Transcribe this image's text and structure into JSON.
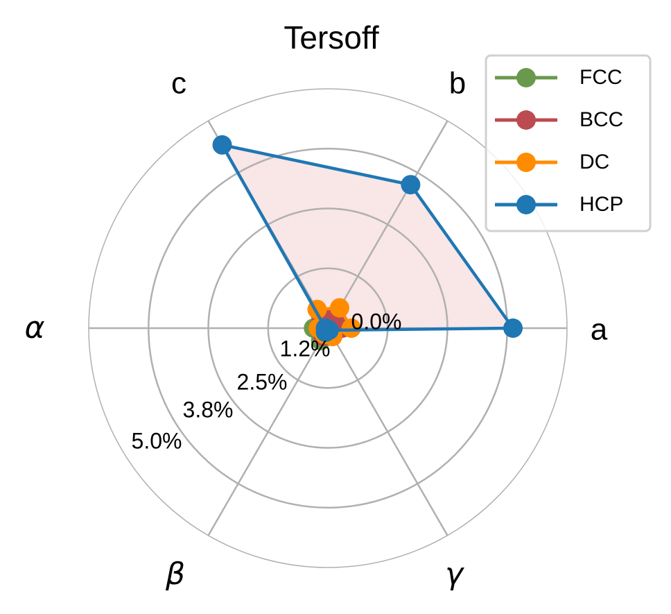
{
  "chart_data": {
    "type": "radar",
    "title": "Tersoff",
    "categories": [
      "a",
      "b",
      "c",
      "α",
      "β",
      "γ"
    ],
    "category_angles_deg": [
      0,
      60,
      120,
      180,
      240,
      300
    ],
    "radial_ticks": [
      "0.0%",
      "1.2%",
      "2.5%",
      "3.8%",
      "5.0%"
    ],
    "radial_tick_values": [
      0.0,
      1.25,
      2.5,
      3.75,
      5.0
    ],
    "rlim": [
      0,
      5.0
    ],
    "grid": true,
    "legend_position": "upper right",
    "series": [
      {
        "name": "FCC",
        "color": "#6a994e",
        "values": [
          0.1,
          0.1,
          0.2,
          0.3,
          0.3,
          0.1
        ]
      },
      {
        "name": "BCC",
        "color": "#bc4b51",
        "values": [
          0.3,
          0.3,
          0.3,
          0.2,
          0.2,
          0.2
        ]
      },
      {
        "name": "DC",
        "color": "#ff8c00",
        "values": [
          0.49,
          0.49,
          0.45,
          0.2,
          0.15,
          0.2
        ]
      },
      {
        "name": "HCP",
        "color": "#1f77b4",
        "values": [
          3.87,
          3.46,
          4.42,
          0.05,
          0.1,
          0.05
        ],
        "fill": "#f9e6e7"
      }
    ]
  },
  "legend": {
    "items": [
      {
        "label": "FCC",
        "color": "#6a994e"
      },
      {
        "label": "BCC",
        "color": "#bc4b51"
      },
      {
        "label": "DC",
        "color": "#ff8c00"
      },
      {
        "label": "HCP",
        "color": "#1f77b4"
      }
    ]
  },
  "colors": {
    "grid": "#b0b0b0",
    "fill": "#f9e6e7"
  }
}
